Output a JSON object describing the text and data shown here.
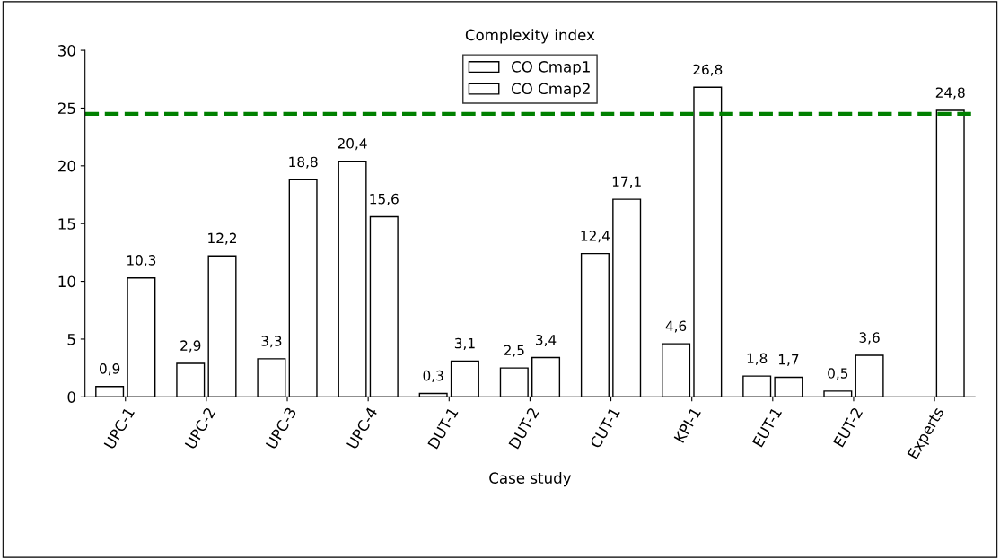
{
  "chart_data": {
    "type": "bar",
    "title": "Complexity index",
    "xlabel": "Case study",
    "categories": [
      "UPC-1",
      "UPC-2",
      "UPC-3",
      "UPC-4",
      "DUT-1",
      "DUT-2",
      "CUT-1",
      "KPI-1",
      "EUT-1",
      "EUT-2",
      "Experts"
    ],
    "series": [
      {
        "name": "CO Cmap1",
        "color": "#ffffff",
        "values": [
          0.9,
          2.9,
          3.3,
          20.4,
          0.3,
          2.5,
          12.4,
          4.6,
          1.8,
          0.5,
          null
        ],
        "value_labels": [
          "0,9",
          "2,9",
          "3,3",
          "20,4",
          "0,3",
          "2,5",
          "12,4",
          "4,6",
          "1,8",
          "0,5",
          null
        ]
      },
      {
        "name": "CO Cmap2",
        "color": "#ffffff",
        "values": [
          10.3,
          12.2,
          18.8,
          15.6,
          3.1,
          3.4,
          17.1,
          26.8,
          1.7,
          3.6,
          24.8
        ],
        "value_labels": [
          "10,3",
          "12,2",
          "18,8",
          "15,6",
          "3,1",
          "3,4",
          "17,1",
          "26,8",
          "1,7",
          "3,6",
          "24,8"
        ]
      }
    ],
    "ylim": [
      0,
      30
    ],
    "yticks": [
      0,
      5,
      10,
      15,
      20,
      25,
      30
    ],
    "ref_lines": [
      {
        "axis": "y",
        "value": 24.5,
        "color": "#008000",
        "line_style": "dashed"
      }
    ],
    "legend": "top",
    "grid": false
  }
}
